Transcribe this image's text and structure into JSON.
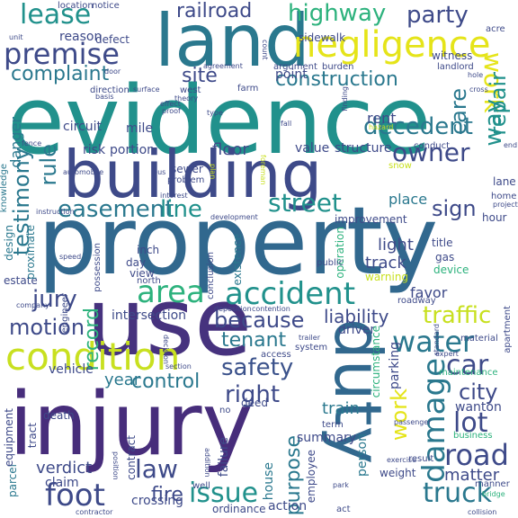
{
  "palette": {
    "darkblue": "#3e4a89",
    "indigo": "#472d7b",
    "purple": "#46327e",
    "blue": "#3b528b",
    "steel": "#31688e",
    "teal": "#2a788e",
    "teal2": "#21918c",
    "green": "#2db27d",
    "green2": "#5ec962",
    "lime": "#8fd744",
    "yellow": "#c8e020",
    "yellow2": "#e5e419"
  },
  "words": [
    {
      "text": "evidence",
      "color": "teal2"
    },
    {
      "text": "property",
      "color": "steel"
    },
    {
      "text": "injury",
      "color": "indigo"
    },
    {
      "text": "building",
      "color": "darkblue"
    },
    {
      "text": "land",
      "color": "teal"
    },
    {
      "text": "use",
      "color": "purple"
    },
    {
      "text": "duty",
      "color": "steel"
    },
    {
      "text": "condition",
      "color": "yellow"
    },
    {
      "text": "negligence",
      "color": "yellow2"
    },
    {
      "text": "accident",
      "color": "teal2"
    },
    {
      "text": "lease",
      "color": "teal2"
    },
    {
      "text": "premise",
      "color": "darkblue"
    },
    {
      "text": "highway",
      "color": "green"
    },
    {
      "text": "party",
      "color": "darkblue"
    },
    {
      "text": "railroad",
      "color": "darkblue"
    },
    {
      "text": "complaint",
      "color": "teal"
    },
    {
      "text": "construction",
      "color": "teal"
    },
    {
      "text": "site",
      "color": "darkblue"
    },
    {
      "text": "owner",
      "color": "darkblue"
    },
    {
      "text": "decedent",
      "color": "teal"
    },
    {
      "text": "street",
      "color": "teal2"
    },
    {
      "text": "easement",
      "color": "teal"
    },
    {
      "text": "line",
      "color": "teal2"
    },
    {
      "text": "sign",
      "color": "darkblue"
    },
    {
      "text": "area",
      "color": "green"
    },
    {
      "text": "water",
      "color": "teal"
    },
    {
      "text": "car",
      "color": "darkblue"
    },
    {
      "text": "traffic",
      "color": "yellow"
    },
    {
      "text": "because",
      "color": "darkblue"
    },
    {
      "text": "tenant",
      "color": "teal"
    },
    {
      "text": "safety",
      "color": "blue"
    },
    {
      "text": "right",
      "color": "darkblue"
    },
    {
      "text": "control",
      "color": "teal"
    },
    {
      "text": "city",
      "color": "darkblue"
    },
    {
      "text": "damage",
      "color": "teal"
    },
    {
      "text": "lot",
      "color": "darkblue"
    },
    {
      "text": "road",
      "color": "darkblue"
    },
    {
      "text": "truck",
      "color": "teal"
    },
    {
      "text": "foot",
      "color": "darkblue"
    },
    {
      "text": "law",
      "color": "darkblue"
    },
    {
      "text": "issue",
      "color": "teal2"
    },
    {
      "text": "fire",
      "color": "darkblue"
    },
    {
      "text": "jury",
      "color": "darkblue"
    },
    {
      "text": "motion",
      "color": "darkblue"
    },
    {
      "text": "testimony",
      "color": "teal"
    },
    {
      "text": "rule",
      "color": "teal"
    },
    {
      "text": "work",
      "color": "yellow2"
    },
    {
      "text": "way",
      "color": "teal2"
    },
    {
      "text": "repair",
      "color": "teal2"
    },
    {
      "text": "care",
      "color": "teal"
    },
    {
      "text": "liability",
      "color": "darkblue"
    },
    {
      "text": "record",
      "color": "green"
    },
    {
      "text": "intersection",
      "color": "darkblue"
    },
    {
      "text": "verdict",
      "color": "darkblue"
    },
    {
      "text": "year",
      "color": "teal"
    },
    {
      "text": "matter",
      "color": "darkblue"
    },
    {
      "text": "purpose",
      "color": "teal"
    },
    {
      "text": "summary",
      "color": "darkblue"
    },
    {
      "text": "train",
      "color": "teal"
    },
    {
      "text": "favor",
      "color": "darkblue"
    },
    {
      "text": "track",
      "color": "darkblue"
    },
    {
      "text": "light",
      "color": "darkblue"
    },
    {
      "text": "place",
      "color": "teal"
    },
    {
      "text": "floor",
      "color": "darkblue"
    },
    {
      "text": "value",
      "color": "darkblue"
    },
    {
      "text": "structure",
      "color": "darkblue"
    },
    {
      "text": "rent",
      "color": "darkblue"
    },
    {
      "text": "danger",
      "color": "teal"
    },
    {
      "text": "risk",
      "color": "darkblue"
    },
    {
      "text": "portion",
      "color": "darkblue"
    },
    {
      "text": "sewer",
      "color": "darkblue"
    },
    {
      "text": "problem",
      "color": "darkblue"
    },
    {
      "text": "mile",
      "color": "darkblue"
    },
    {
      "text": "circuit",
      "color": "darkblue"
    },
    {
      "text": "sidewalk",
      "color": "darkblue"
    },
    {
      "text": "witness",
      "color": "darkblue"
    },
    {
      "text": "reason",
      "color": "darkblue"
    },
    {
      "text": "defect",
      "color": "darkblue"
    },
    {
      "text": "location",
      "color": "darkblue"
    },
    {
      "text": "notice",
      "color": "darkblue"
    },
    {
      "text": "point",
      "color": "darkblue"
    },
    {
      "text": "argument",
      "color": "darkblue"
    },
    {
      "text": "burden",
      "color": "darkblue"
    },
    {
      "text": "landlord",
      "color": "darkblue"
    },
    {
      "text": "farm",
      "color": "darkblue"
    },
    {
      "text": "west",
      "color": "darkblue"
    },
    {
      "text": "direction",
      "color": "darkblue"
    },
    {
      "text": "door",
      "color": "darkblue"
    },
    {
      "text": "theory",
      "color": "darkblue"
    },
    {
      "text": "type",
      "color": "darkblue"
    },
    {
      "text": "finding",
      "color": "darkblue"
    },
    {
      "text": "hole",
      "color": "darkblue"
    },
    {
      "text": "acre",
      "color": "darkblue"
    },
    {
      "text": "unit",
      "color": "darkblue"
    },
    {
      "text": "knowledge",
      "color": "teal"
    },
    {
      "text": "automobile",
      "color": "darkblue"
    },
    {
      "text": "bus",
      "color": "darkblue"
    },
    {
      "text": "interest",
      "color": "darkblue"
    },
    {
      "text": "lane",
      "color": "darkblue"
    },
    {
      "text": "home",
      "color": "darkblue"
    },
    {
      "text": "hour",
      "color": "darkblue"
    },
    {
      "text": "improvement",
      "color": "darkblue"
    },
    {
      "text": "operation",
      "color": "green"
    },
    {
      "text": "title",
      "color": "darkblue"
    },
    {
      "text": "gas",
      "color": "darkblue"
    },
    {
      "text": "device",
      "color": "green"
    },
    {
      "text": "warning",
      "color": "yellow"
    },
    {
      "text": "roadway",
      "color": "darkblue"
    },
    {
      "text": "inch",
      "color": "darkblue"
    },
    {
      "text": "day",
      "color": "darkblue"
    },
    {
      "text": "view",
      "color": "darkblue"
    },
    {
      "text": "north",
      "color": "darkblue"
    },
    {
      "text": "estate",
      "color": "darkblue"
    },
    {
      "text": "design",
      "color": "teal"
    },
    {
      "text": "proximate",
      "color": "teal"
    },
    {
      "text": "possession",
      "color": "darkblue"
    },
    {
      "text": "conclusion",
      "color": "darkblue"
    },
    {
      "text": "existence",
      "color": "teal"
    },
    {
      "text": "public",
      "color": "darkblue"
    },
    {
      "text": "vehicle",
      "color": "darkblue"
    },
    {
      "text": "access",
      "color": "darkblue"
    },
    {
      "text": "system",
      "color": "darkblue"
    },
    {
      "text": "driver",
      "color": "darkblue"
    },
    {
      "text": "parking",
      "color": "darkblue"
    },
    {
      "text": "material",
      "color": "darkblue"
    },
    {
      "text": "maintenance",
      "color": "green"
    },
    {
      "text": "wanton",
      "color": "darkblue"
    },
    {
      "text": "circumstance",
      "color": "green"
    },
    {
      "text": "deed",
      "color": "darkblue"
    },
    {
      "text": "death",
      "color": "darkblue"
    },
    {
      "text": "term",
      "color": "darkblue"
    },
    {
      "text": "result",
      "color": "darkblue"
    },
    {
      "text": "business",
      "color": "green"
    },
    {
      "text": "weight",
      "color": "darkblue"
    },
    {
      "text": "person",
      "color": "teal"
    },
    {
      "text": "employee",
      "color": "darkblue"
    },
    {
      "text": "house",
      "color": "teal"
    },
    {
      "text": "failure",
      "color": "darkblue"
    },
    {
      "text": "contract",
      "color": "darkblue"
    },
    {
      "text": "claim",
      "color": "darkblue"
    },
    {
      "text": "parcel",
      "color": "teal"
    },
    {
      "text": "equipment",
      "color": "darkblue"
    },
    {
      "text": "tract",
      "color": "darkblue"
    },
    {
      "text": "crossing",
      "color": "darkblue"
    },
    {
      "text": "ordinance",
      "color": "darkblue"
    },
    {
      "text": "action",
      "color": "darkblue"
    },
    {
      "text": "well",
      "color": "darkblue"
    },
    {
      "text": "engineer",
      "color": "darkblue"
    },
    {
      "text": "passenger",
      "color": "darkblue"
    },
    {
      "text": "exercise",
      "color": "darkblue"
    },
    {
      "text": "collision",
      "color": "darkblue"
    },
    {
      "text": "manner",
      "color": "darkblue"
    },
    {
      "text": "bridge",
      "color": "green"
    },
    {
      "text": "apartment",
      "color": "darkblue"
    },
    {
      "text": "standard",
      "color": "darkblue"
    },
    {
      "text": "agreement",
      "color": "darkblue"
    },
    {
      "text": "count",
      "color": "darkblue"
    },
    {
      "text": "basis",
      "color": "darkblue"
    },
    {
      "text": "surface",
      "color": "darkblue"
    },
    {
      "text": "cross",
      "color": "darkblue"
    },
    {
      "text": "conduct",
      "color": "darkblue"
    },
    {
      "text": "end",
      "color": "darkblue"
    },
    {
      "text": "fence",
      "color": "darkblue"
    },
    {
      "text": "fall",
      "color": "darkblue"
    },
    {
      "text": "snow",
      "color": "yellow"
    },
    {
      "text": "act",
      "color": "darkblue"
    },
    {
      "text": "project",
      "color": "darkblue"
    },
    {
      "text": "foreman",
      "color": "yellow"
    },
    {
      "text": "plan",
      "color": "yellow"
    },
    {
      "text": "hazard",
      "color": "yellow"
    },
    {
      "text": "effect",
      "color": "darkblue"
    },
    {
      "text": "proof",
      "color": "darkblue"
    },
    {
      "text": "development",
      "color": "darkblue"
    },
    {
      "text": "instruction",
      "color": "darkblue"
    },
    {
      "text": "speed",
      "color": "darkblue"
    },
    {
      "text": "company",
      "color": "darkblue"
    },
    {
      "text": "decision",
      "color": "darkblue"
    },
    {
      "text": "section",
      "color": "darkblue"
    },
    {
      "text": "deposition",
      "color": "darkblue"
    },
    {
      "text": "contention",
      "color": "darkblue"
    },
    {
      "text": "trailer",
      "color": "darkblue"
    },
    {
      "text": "no",
      "color": "darkblue"
    },
    {
      "text": "position",
      "color": "darkblue"
    },
    {
      "text": "addition",
      "color": "darkblue"
    },
    {
      "text": "contractor",
      "color": "darkblue"
    },
    {
      "text": "park",
      "color": "darkblue"
    },
    {
      "text": "expert",
      "color": "darkblue"
    }
  ]
}
